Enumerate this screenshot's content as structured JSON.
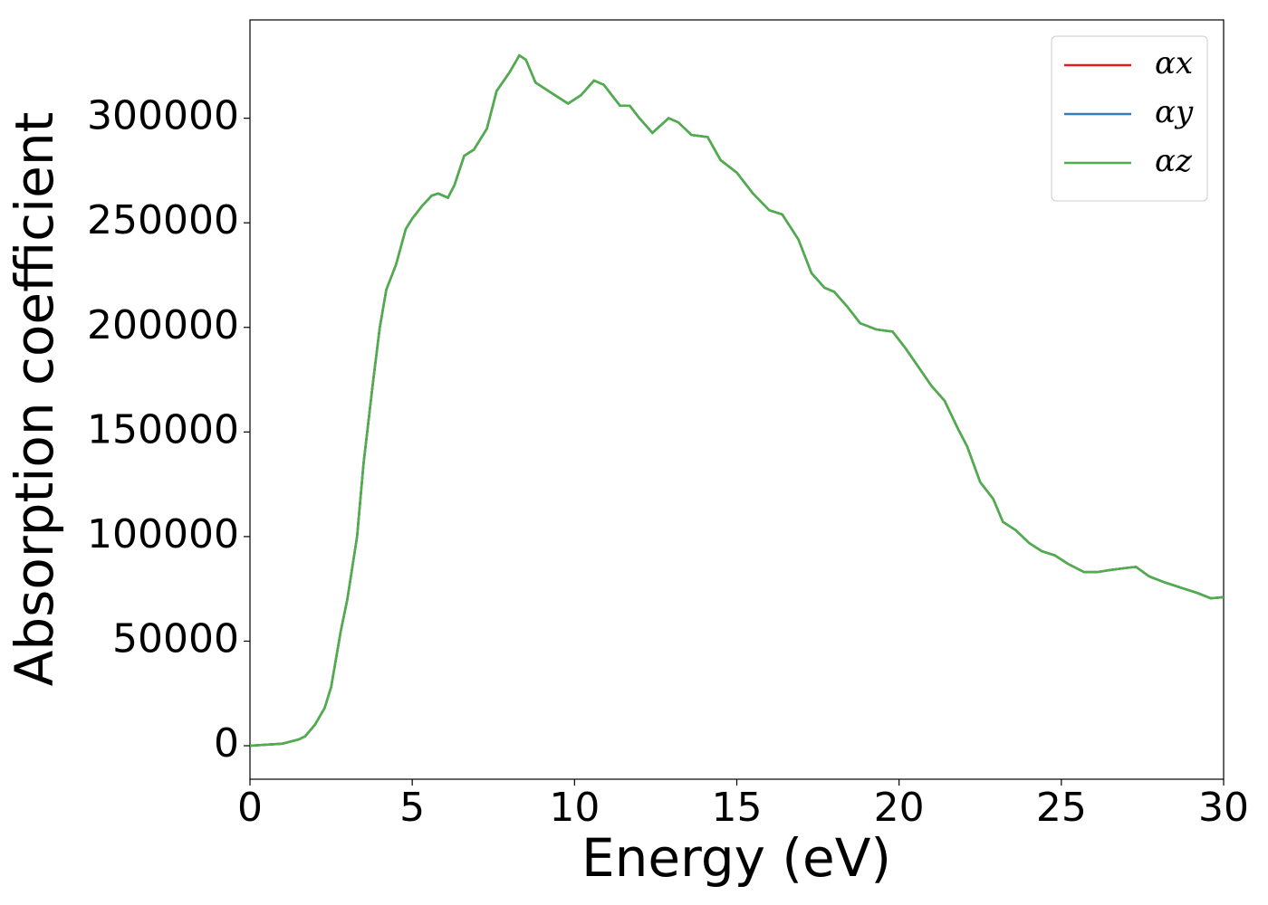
{
  "chart_data": {
    "type": "line",
    "xlabel": "Energy (eV)",
    "ylabel": "Absorption coefficient",
    "x": [
      0,
      0.5,
      1.0,
      1.5,
      1.7,
      2.0,
      2.3,
      2.5,
      2.8,
      3.0,
      3.3,
      3.5,
      3.8,
      4.0,
      4.2,
      4.5,
      4.8,
      5.0,
      5.3,
      5.6,
      5.8,
      6.1,
      6.3,
      6.6,
      6.9,
      7.3,
      7.6,
      8.0,
      8.3,
      8.5,
      8.8,
      9.3,
      9.8,
      10.2,
      10.6,
      10.9,
      11.4,
      11.7,
      12.0,
      12.4,
      12.9,
      13.2,
      13.6,
      14.1,
      14.5,
      15.0,
      15.5,
      16.0,
      16.4,
      16.9,
      17.3,
      17.7,
      18.0,
      18.4,
      18.8,
      19.3,
      19.8,
      20.2,
      20.6,
      21.0,
      21.4,
      21.8,
      22.1,
      22.5,
      22.9,
      23.2,
      23.6,
      24.0,
      24.4,
      24.8,
      25.2,
      25.7,
      26.1,
      26.5,
      27.0,
      27.3,
      27.7,
      28.2,
      28.7,
      29.2,
      29.6,
      30
    ],
    "series": [
      {
        "name": "αx",
        "color": "#e41a1c",
        "values": [
          0,
          500,
          1000,
          3000,
          4500,
          10000,
          18000,
          28000,
          55000,
          70000,
          100000,
          135000,
          175000,
          200000,
          218000,
          230000,
          247000,
          252000,
          258000,
          263000,
          264000,
          262000,
          268000,
          282000,
          285000,
          295000,
          313000,
          322000,
          330000,
          328000,
          317000,
          312000,
          307000,
          311000,
          318000,
          316000,
          306000,
          306000,
          300000,
          293000,
          300000,
          298000,
          292000,
          291000,
          280000,
          274000,
          264000,
          256000,
          254000,
          242000,
          226000,
          219000,
          217000,
          210000,
          202000,
          199000,
          198000,
          190000,
          181000,
          172000,
          165000,
          152000,
          143000,
          126000,
          118000,
          107000,
          103000,
          97000,
          93000,
          91000,
          87000,
          83000,
          83000,
          84000,
          85000,
          85500,
          81000,
          78000,
          75500,
          73000,
          70500,
          71000
        ]
      },
      {
        "name": "αy",
        "color": "#377eb8",
        "values": [
          0,
          500,
          1000,
          3000,
          4500,
          10000,
          18000,
          28000,
          55000,
          70000,
          100000,
          135000,
          175000,
          200000,
          218000,
          230000,
          247000,
          252000,
          258000,
          263000,
          264000,
          262000,
          268000,
          282000,
          285000,
          295000,
          313000,
          322000,
          330000,
          328000,
          317000,
          312000,
          307000,
          311000,
          318000,
          316000,
          306000,
          306000,
          300000,
          293000,
          300000,
          298000,
          292000,
          291000,
          280000,
          274000,
          264000,
          256000,
          254000,
          242000,
          226000,
          219000,
          217000,
          210000,
          202000,
          199000,
          198000,
          190000,
          181000,
          172000,
          165000,
          152000,
          143000,
          126000,
          118000,
          107000,
          103000,
          97000,
          93000,
          91000,
          87000,
          83000,
          83000,
          84000,
          85000,
          85500,
          81000,
          78000,
          75500,
          73000,
          70500,
          71000
        ]
      },
      {
        "name": "αz",
        "color": "#4daf4a",
        "values": [
          0,
          500,
          1000,
          3000,
          4500,
          10000,
          18000,
          28000,
          55000,
          70000,
          100000,
          135000,
          175000,
          200000,
          218000,
          230000,
          247000,
          252000,
          258000,
          263000,
          264000,
          262000,
          268000,
          282000,
          285000,
          295000,
          313000,
          322000,
          330000,
          328000,
          317000,
          312000,
          307000,
          311000,
          318000,
          316000,
          306000,
          306000,
          300000,
          293000,
          300000,
          298000,
          292000,
          291000,
          280000,
          274000,
          264000,
          256000,
          254000,
          242000,
          226000,
          219000,
          217000,
          210000,
          202000,
          199000,
          198000,
          190000,
          181000,
          172000,
          165000,
          152000,
          143000,
          126000,
          118000,
          107000,
          103000,
          97000,
          93000,
          91000,
          87000,
          83000,
          83000,
          84000,
          85000,
          85500,
          81000,
          78000,
          75500,
          73000,
          70500,
          71000
        ]
      }
    ],
    "xlim": [
      0,
      30
    ],
    "xticks": [
      0,
      5,
      10,
      15,
      20,
      25,
      30
    ],
    "ylim": [
      -16000,
      347000
    ],
    "yticks": [
      0,
      50000,
      100000,
      150000,
      200000,
      250000,
      300000
    ],
    "legend": "upper right",
    "grid": false
  }
}
